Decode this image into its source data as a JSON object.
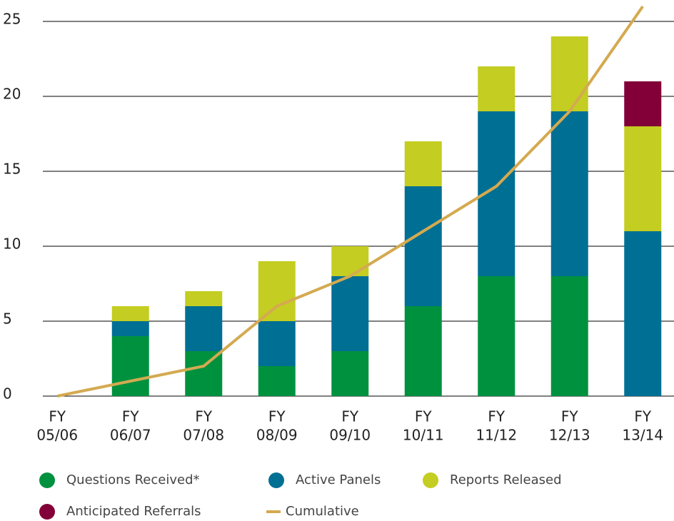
{
  "chart_data": {
    "type": "stacked-bar-line",
    "categories": [
      [
        "FY",
        "05/06"
      ],
      [
        "FY",
        "06/07"
      ],
      [
        "FY",
        "07/08"
      ],
      [
        "FY",
        "08/09"
      ],
      [
        "FY",
        "09/10"
      ],
      [
        "FY",
        "10/11"
      ],
      [
        "FY",
        "11/12"
      ],
      [
        "FY",
        "12/13"
      ],
      [
        "FY",
        "13/14"
      ]
    ],
    "series": [
      {
        "name": "Questions Received*",
        "color": "#00913f",
        "type": "bar",
        "values": [
          0,
          4,
          3,
          2,
          3,
          6,
          8,
          8,
          0
        ]
      },
      {
        "name": "Active Panels",
        "color": "#006f94",
        "type": "bar",
        "values": [
          0,
          1,
          3,
          3,
          5,
          8,
          11,
          11,
          11
        ]
      },
      {
        "name": "Reports Released",
        "color": "#c4cd21",
        "type": "bar",
        "values": [
          0,
          1,
          1,
          4,
          2,
          3,
          3,
          5,
          7
        ]
      },
      {
        "name": "Anticipated Referrals",
        "color": "#820037",
        "type": "bar",
        "values": [
          0,
          0,
          0,
          0,
          0,
          0,
          0,
          0,
          3
        ]
      },
      {
        "name": "Cumulative",
        "color": "#d4aa50",
        "type": "line",
        "values": [
          0,
          1,
          2,
          6,
          8,
          11,
          14,
          19,
          26
        ]
      }
    ],
    "ylim": [
      0,
      26
    ],
    "yticks": [
      0,
      5,
      10,
      15,
      20,
      25
    ],
    "grid": true,
    "legend": "bottom"
  }
}
